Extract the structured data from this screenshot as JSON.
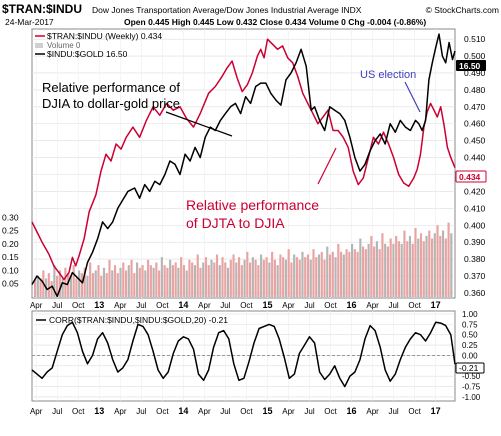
{
  "header": {
    "symbol": "$TRAN:$INDU",
    "description": "Dow Jones Transportation Average/Dow Jones Industrial Average INDX",
    "copyright": "© StockCharts.com",
    "date": "24-Mar-2017",
    "quote": "Open 0.445  High 0.445  Low 0.432  Close 0.434  Volume 0  Chg -0.004 (-0.86%)",
    "quote_chg_arrow": "▼"
  },
  "legend": {
    "series1": "$TRAN:$INDU (Weekly) 0.434",
    "volume": "Volume 0",
    "series2": "$INDU:$GOLD 16.50"
  },
  "annotations": {
    "djia_gold": [
      "Relative performance of",
      "DJIA to dollar-gold price"
    ],
    "djta_djia": [
      "Relative performance",
      "of DJTA to DJIA"
    ],
    "election": "US election"
  },
  "last_value_tags": {
    "series2": "16.50",
    "series1": "0.434"
  },
  "lower_panel": {
    "label": "CORR($TRAN:$INDU,$INDU:$GOLD,20) -0.21",
    "last_tag": "-0.21"
  },
  "colors": {
    "ratio": "#cc0033",
    "gold": "#000000",
    "volume_red": "#e8a3a3",
    "volume_gray": "#b5b5b5",
    "election": "#4040c0",
    "grid": "#dddddd"
  },
  "chart_data": [
    {
      "type": "line",
      "title": "$TRAN:$INDU Dow Jones Transportation Average/Dow Jones Industrial Average INDX",
      "x_ticks": [
        "Apr",
        "Jul",
        "Oct",
        "13",
        "Apr",
        "Jul",
        "Oct",
        "14",
        "Apr",
        "Jul",
        "Oct",
        "15",
        "Apr",
        "Jul",
        "Oct",
        "16",
        "Apr",
        "Jul",
        "Oct",
        "17"
      ],
      "right_axis_ticks": [
        "0.510",
        "0.500",
        "0.490",
        "0.480",
        "0.470",
        "0.460",
        "0.450",
        "0.440",
        "0.430",
        "0.420",
        "0.410",
        "0.400",
        "0.390",
        "0.380",
        "0.370",
        "0.360"
      ],
      "left_axis_ticks": [
        "0.30",
        "0.25",
        "0.20",
        "0.15",
        "0.10",
        "0.05"
      ],
      "ylim": [
        0.357,
        0.516
      ],
      "x_range": [
        2012.2,
        2017.23
      ],
      "series": [
        {
          "name": "$TRAN:$INDU (Weekly)",
          "x": [
            2012.2,
            2012.26,
            2012.32,
            2012.4,
            2012.46,
            2012.52,
            2012.58,
            2012.64,
            2012.68,
            2012.72,
            2012.76,
            2012.82,
            2012.88,
            2012.96,
            2013.02,
            2013.08,
            2013.14,
            2013.2,
            2013.26,
            2013.32,
            2013.4,
            2013.48,
            2013.56,
            2013.64,
            2013.72,
            2013.8,
            2013.88,
            2013.96,
            2014.04,
            2014.12,
            2014.2,
            2014.3,
            2014.38,
            2014.46,
            2014.52,
            2014.58,
            2014.64,
            2014.7,
            2014.76,
            2014.82,
            2014.88,
            2014.92,
            2014.96,
            2015.0,
            2015.06,
            2015.12,
            2015.18,
            2015.24,
            2015.3,
            2015.36,
            2015.42,
            2015.48,
            2015.54,
            2015.6,
            2015.66,
            2015.72,
            2015.78,
            2015.84,
            2015.9,
            2015.96,
            2016.02,
            2016.08,
            2016.14,
            2016.2,
            2016.26,
            2016.32,
            2016.38,
            2016.44,
            2016.5,
            2016.56,
            2016.62,
            2016.68,
            2016.74,
            2016.78,
            2016.82,
            2016.86,
            2016.9,
            2016.94,
            2016.98,
            2017.02,
            2017.06,
            2017.1,
            2017.14,
            2017.18,
            2017.23
          ],
          "values": [
            0.402,
            0.396,
            0.39,
            0.383,
            0.376,
            0.372,
            0.368,
            0.372,
            0.381,
            0.376,
            0.382,
            0.392,
            0.408,
            0.418,
            0.432,
            0.442,
            0.438,
            0.448,
            0.445,
            0.452,
            0.458,
            0.452,
            0.462,
            0.47,
            0.465,
            0.472,
            0.468,
            0.47,
            0.463,
            0.458,
            0.466,
            0.478,
            0.482,
            0.488,
            0.493,
            0.497,
            0.487,
            0.479,
            0.483,
            0.49,
            0.5,
            0.504,
            0.499,
            0.51,
            0.507,
            0.504,
            0.506,
            0.499,
            0.496,
            0.488,
            0.478,
            0.472,
            0.466,
            0.46,
            0.464,
            0.468,
            0.456,
            0.456,
            0.452,
            0.446,
            0.432,
            0.424,
            0.428,
            0.44,
            0.452,
            0.448,
            0.455,
            0.448,
            0.44,
            0.43,
            0.425,
            0.423,
            0.428,
            0.433,
            0.442,
            0.458,
            0.467,
            0.472,
            0.468,
            0.464,
            0.47,
            0.459,
            0.446,
            0.44,
            0.434
          ]
        },
        {
          "name": "$INDU:$GOLD",
          "x": [
            2012.2,
            2012.26,
            2012.32,
            2012.38,
            2012.44,
            2012.5,
            2012.56,
            2012.62,
            2012.68,
            2012.74,
            2012.8,
            2012.86,
            2012.92,
            2012.98,
            2013.04,
            2013.1,
            2013.16,
            2013.22,
            2013.28,
            2013.34,
            2013.42,
            2013.48,
            2013.54,
            2013.6,
            2013.66,
            2013.72,
            2013.78,
            2013.84,
            2013.9,
            2013.96,
            2014.02,
            2014.08,
            2014.14,
            2014.2,
            2014.26,
            2014.32,
            2014.38,
            2014.44,
            2014.5,
            2014.56,
            2014.62,
            2014.68,
            2014.74,
            2014.8,
            2014.86,
            2014.92,
            2014.98,
            2015.04,
            2015.1,
            2015.16,
            2015.22,
            2015.28,
            2015.34,
            2015.4,
            2015.46,
            2015.52,
            2015.56,
            2015.62,
            2015.68,
            2015.74,
            2015.8,
            2015.86,
            2015.92,
            2015.98,
            2016.04,
            2016.1,
            2016.16,
            2016.22,
            2016.28,
            2016.34,
            2016.4,
            2016.46,
            2016.52,
            2016.58,
            2016.64,
            2016.7,
            2016.76,
            2016.8,
            2016.84,
            2016.88,
            2016.92,
            2016.96,
            2017.0,
            2017.04,
            2017.08,
            2017.12,
            2017.16,
            2017.2,
            2017.23
          ],
          "values": [
            0.365,
            0.37,
            0.367,
            0.362,
            0.364,
            0.358,
            0.366,
            0.365,
            0.372,
            0.369,
            0.366,
            0.378,
            0.384,
            0.392,
            0.402,
            0.398,
            0.402,
            0.41,
            0.415,
            0.42,
            0.422,
            0.416,
            0.424,
            0.42,
            0.426,
            0.424,
            0.43,
            0.438,
            0.436,
            0.43,
            0.442,
            0.438,
            0.446,
            0.44,
            0.452,
            0.458,
            0.456,
            0.462,
            0.466,
            0.47,
            0.472,
            0.466,
            0.476,
            0.472,
            0.482,
            0.484,
            0.484,
            0.478,
            0.474,
            0.471,
            0.486,
            0.49,
            0.496,
            0.504,
            0.494,
            0.468,
            0.47,
            0.462,
            0.456,
            0.47,
            0.468,
            0.466,
            0.462,
            0.452,
            0.44,
            0.432,
            0.436,
            0.444,
            0.45,
            0.454,
            0.448,
            0.46,
            0.455,
            0.462,
            0.458,
            0.456,
            0.462,
            0.46,
            0.456,
            0.462,
            0.486,
            0.496,
            0.505,
            0.513,
            0.5,
            0.496,
            0.508,
            0.498,
            0.503
          ]
        }
      ],
      "volume_bars": [
        0.065,
        0.08,
        0.07,
        0.1,
        0.07,
        0.09,
        0.06,
        0.12,
        0.08,
        0.1,
        0.07,
        0.11,
        0.09,
        0.08,
        0.12,
        0.07,
        0.1,
        0.09,
        0.11,
        0.08,
        0.13,
        0.09,
        0.1,
        0.12,
        0.08,
        0.11,
        0.09,
        0.14,
        0.1,
        0.12,
        0.09,
        0.11,
        0.13,
        0.1,
        0.12,
        0.14,
        0.09,
        0.13,
        0.11,
        0.12,
        0.1,
        0.14,
        0.12,
        0.11,
        0.13,
        0.1,
        0.15,
        0.12,
        0.11,
        0.14,
        0.12,
        0.13,
        0.11,
        0.15,
        0.12,
        0.1,
        0.14,
        0.13,
        0.12,
        0.16,
        0.11,
        0.13,
        0.15,
        0.12,
        0.14,
        0.13,
        0.16,
        0.12,
        0.15,
        0.13,
        0.11,
        0.14,
        0.16,
        0.13,
        0.15,
        0.12,
        0.14,
        0.17,
        0.13,
        0.15,
        0.14,
        0.12,
        0.16,
        0.14,
        0.15,
        0.13,
        0.17,
        0.14,
        0.12,
        0.16,
        0.15,
        0.14,
        0.18,
        0.13,
        0.16,
        0.15,
        0.14,
        0.17,
        0.15,
        0.16,
        0.14,
        0.18,
        0.15,
        0.16,
        0.17,
        0.14,
        0.19,
        0.16,
        0.17,
        0.15,
        0.2,
        0.17,
        0.16,
        0.18,
        0.17,
        0.2,
        0.18,
        0.17,
        0.22,
        0.19,
        0.18,
        0.2,
        0.23,
        0.19,
        0.21,
        0.18,
        0.24,
        0.2,
        0.19,
        0.22,
        0.2,
        0.23,
        0.21,
        0.2,
        0.25,
        0.21,
        0.23,
        0.2,
        0.26,
        0.22,
        0.24,
        0.21,
        0.23,
        0.25,
        0.22,
        0.24,
        0.27,
        0.23,
        0.25,
        0.22,
        0.28,
        0.24
      ],
      "volume_axis_ticks": [
        "0.30",
        "0.25",
        "0.20",
        "0.15",
        "0.10",
        "0.05"
      ]
    },
    {
      "type": "line",
      "title": "CORR($TRAN:$INDU,$INDU:$GOLD,20) -0.21",
      "y_ticks": [
        "1.00",
        "0.75",
        "0.50",
        "0.25",
        "0.00",
        "-0.25",
        "-0.50",
        "-0.75",
        "-1.00"
      ],
      "ylim": [
        -1.05,
        1.0
      ],
      "series": [
        {
          "name": "CORR($TRAN:$INDU,$INDU:$GOLD,20)",
          "x": [
            2012.2,
            2012.26,
            2012.32,
            2012.38,
            2012.44,
            2012.5,
            2012.56,
            2012.62,
            2012.68,
            2012.74,
            2012.8,
            2012.86,
            2012.92,
            2012.98,
            2013.04,
            2013.1,
            2013.16,
            2013.22,
            2013.28,
            2013.34,
            2013.4,
            2013.46,
            2013.52,
            2013.58,
            2013.64,
            2013.7,
            2013.76,
            2013.82,
            2013.88,
            2013.94,
            2014.0,
            2014.06,
            2014.12,
            2014.18,
            2014.24,
            2014.3,
            2014.36,
            2014.42,
            2014.48,
            2014.54,
            2014.6,
            2014.66,
            2014.72,
            2014.78,
            2014.84,
            2014.9,
            2014.96,
            2015.02,
            2015.08,
            2015.14,
            2015.2,
            2015.26,
            2015.32,
            2015.38,
            2015.44,
            2015.5,
            2015.56,
            2015.62,
            2015.68,
            2015.74,
            2015.8,
            2015.86,
            2015.92,
            2015.98,
            2016.04,
            2016.1,
            2016.16,
            2016.22,
            2016.28,
            2016.34,
            2016.4,
            2016.46,
            2016.52,
            2016.58,
            2016.64,
            2016.7,
            2016.76,
            2016.82,
            2016.88,
            2016.94,
            2017.0,
            2017.06,
            2017.12,
            2017.18,
            2017.23
          ],
          "values": [
            -0.35,
            -0.45,
            -0.55,
            -0.4,
            -0.3,
            0.1,
            0.5,
            0.72,
            0.8,
            0.55,
            0.1,
            -0.2,
            0.0,
            0.4,
            0.55,
            0.3,
            -0.1,
            -0.4,
            -0.3,
            -0.1,
            0.35,
            0.75,
            0.7,
            0.5,
            0.1,
            -0.35,
            -0.55,
            -0.4,
            0.05,
            0.35,
            0.45,
            0.4,
            0.15,
            -0.45,
            -0.6,
            -0.35,
            0.2,
            0.55,
            0.6,
            0.4,
            -0.2,
            -0.6,
            -0.55,
            -0.15,
            0.3,
            0.65,
            0.7,
            0.75,
            0.7,
            0.4,
            -0.05,
            -0.55,
            -0.45,
            0.05,
            0.25,
            0.45,
            0.3,
            -0.4,
            -0.58,
            -0.45,
            -0.25,
            -0.55,
            -0.75,
            -0.5,
            -0.4,
            -0.1,
            0.4,
            0.72,
            0.6,
            0.2,
            -0.35,
            -0.62,
            -0.45,
            -0.1,
            0.2,
            0.4,
            0.55,
            0.5,
            0.35,
            0.55,
            0.8,
            0.78,
            0.72,
            0.5,
            -0.21
          ]
        }
      ]
    }
  ]
}
